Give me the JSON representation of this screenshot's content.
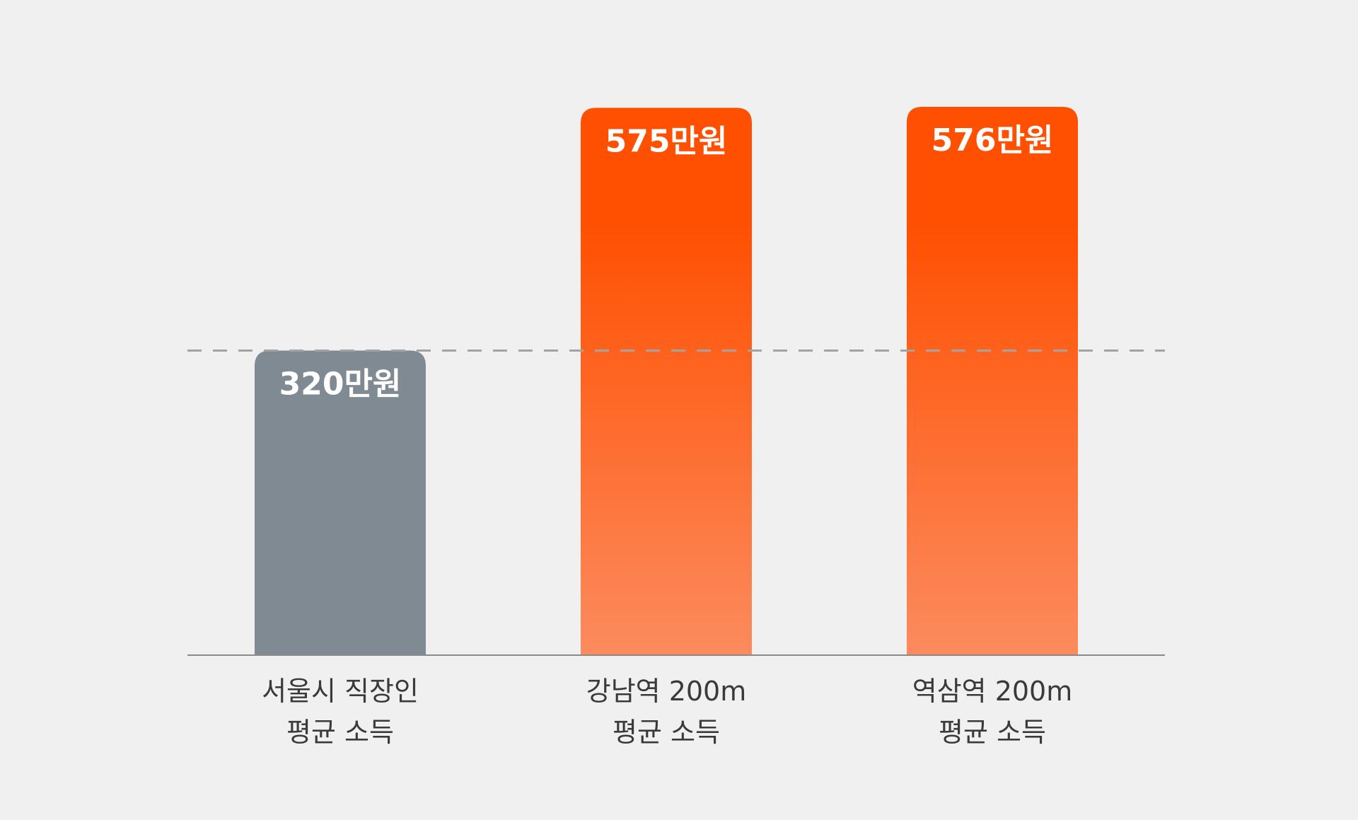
{
  "chart_data": {
    "type": "bar",
    "categories": [
      [
        "서울시 직장인",
        "평균 소득"
      ],
      [
        "강남역 200m",
        "평균 소득"
      ],
      [
        "역삼역 200m",
        "평균 소득"
      ]
    ],
    "values": [
      320,
      575,
      576
    ],
    "value_labels": [
      "320만원",
      "575만원",
      "576만원"
    ],
    "reference_line": 320,
    "ylim": [
      0,
      576
    ],
    "grid": false,
    "colors": {
      "neutral_bar": "#7f8a93",
      "accent_top": "#ff4f00",
      "accent_bottom": "#fc8b5e",
      "reference_line": "#a3a3a3",
      "axis": "#8a8a8a",
      "category_text": "#3a3a3a",
      "value_text": "#ffffff"
    }
  }
}
